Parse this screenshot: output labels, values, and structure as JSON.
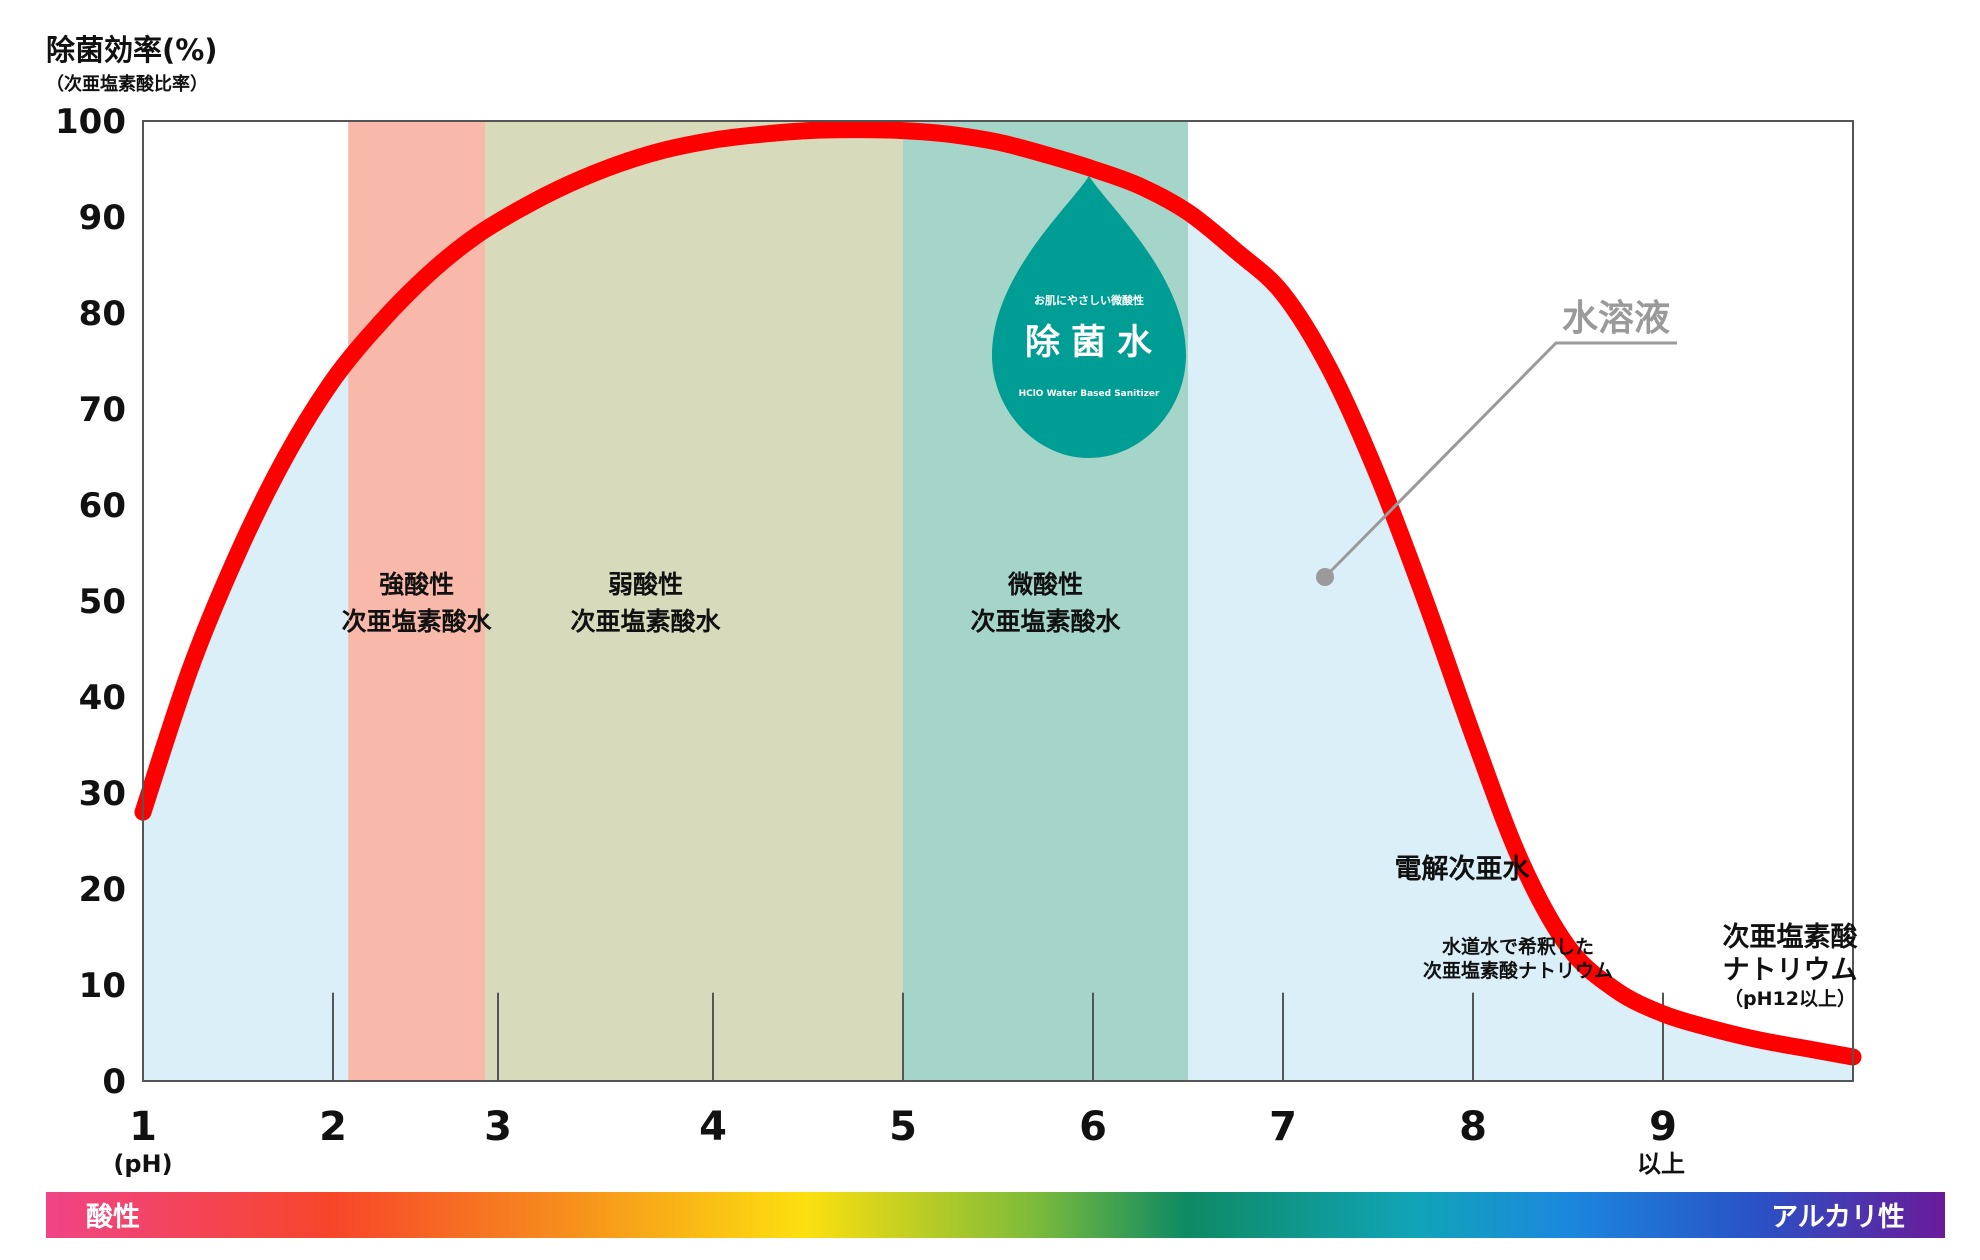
{
  "chart_data": {
    "type": "line",
    "ylabel": "除菌効率(%)",
    "ylabel_sub": "（次亜塩素酸比率）",
    "xlabel": "(pH)",
    "xlim": [
      1,
      10
    ],
    "ylim": [
      0,
      100
    ],
    "x_ticks": [
      "1",
      "2",
      "3",
      "4",
      "5",
      "6",
      "7",
      "8",
      "9"
    ],
    "x_tick_sub_9": "以上",
    "y_ticks": [
      "0",
      "10",
      "20",
      "30",
      "40",
      "50",
      "60",
      "70",
      "80",
      "90",
      "100"
    ],
    "grid": false,
    "series": [
      {
        "name": "",
        "color": "#ff0000",
        "x": [
          1.0,
          1.25,
          1.5,
          1.75,
          2.0,
          2.25,
          2.5,
          2.75,
          3.0,
          3.25,
          3.5,
          3.75,
          4.0,
          4.25,
          4.5,
          4.75,
          5.0,
          5.25,
          5.5,
          5.75,
          6.0,
          6.25,
          6.5,
          6.75,
          7.0,
          7.25,
          7.5,
          7.75,
          8.0,
          8.25,
          8.5,
          8.75,
          9.0,
          9.25,
          9.5,
          9.75,
          10.0
        ],
        "y": [
          28,
          43,
          55,
          65,
          73,
          79,
          84,
          88,
          91,
          93.5,
          95.5,
          97,
          98,
          98.6,
          99,
          99.1,
          99,
          98.6,
          97.8,
          96.5,
          95,
          93.2,
          90.5,
          86.5,
          82,
          74,
          63,
          50,
          36,
          23,
          14,
          9.5,
          7,
          5.5,
          4.3,
          3.4,
          2.5
        ]
      }
    ],
    "zones": [
      {
        "name": "強酸性",
        "name2": "次亜塩素酸水",
        "x0": 2.08,
        "x1": 2.8,
        "color": "#f9b9aa"
      },
      {
        "name": "",
        "name2": "",
        "x0": 2.8,
        "x1": 4.0,
        "color": "#fde5b8"
      },
      {
        "name": "弱酸性",
        "name2": "次亜塩素酸水",
        "x0": 2.8,
        "x1": 5.0,
        "color": "#d7dbbb"
      },
      {
        "name": "微酸性",
        "name2": "次亜塩素酸水",
        "x0": 5.0,
        "x1": 6.5,
        "color": "#a5d5c9"
      }
    ],
    "annotations": {
      "solution": "水溶液",
      "electrolyzed": "電解次亜水",
      "diluted_line1": "水道水で希釈した",
      "diluted_line2": "次亜塩素酸ナトリウム",
      "sodium_line1": "次亜塩素酸",
      "sodium_line2": "ナトリウム",
      "sodium_line3": "（pH12以上）"
    },
    "drop": {
      "top": "お肌にやさしい微酸性",
      "main": "除菌水",
      "sub": "HClO Water Based Sanitizer"
    },
    "colors": {
      "area": "#daeff8",
      "curve": "#ff0000",
      "drop": "#009d94",
      "axis": "#555555"
    }
  },
  "ph_bar": {
    "left_label": "酸性",
    "right_label": "アルカリ性"
  }
}
